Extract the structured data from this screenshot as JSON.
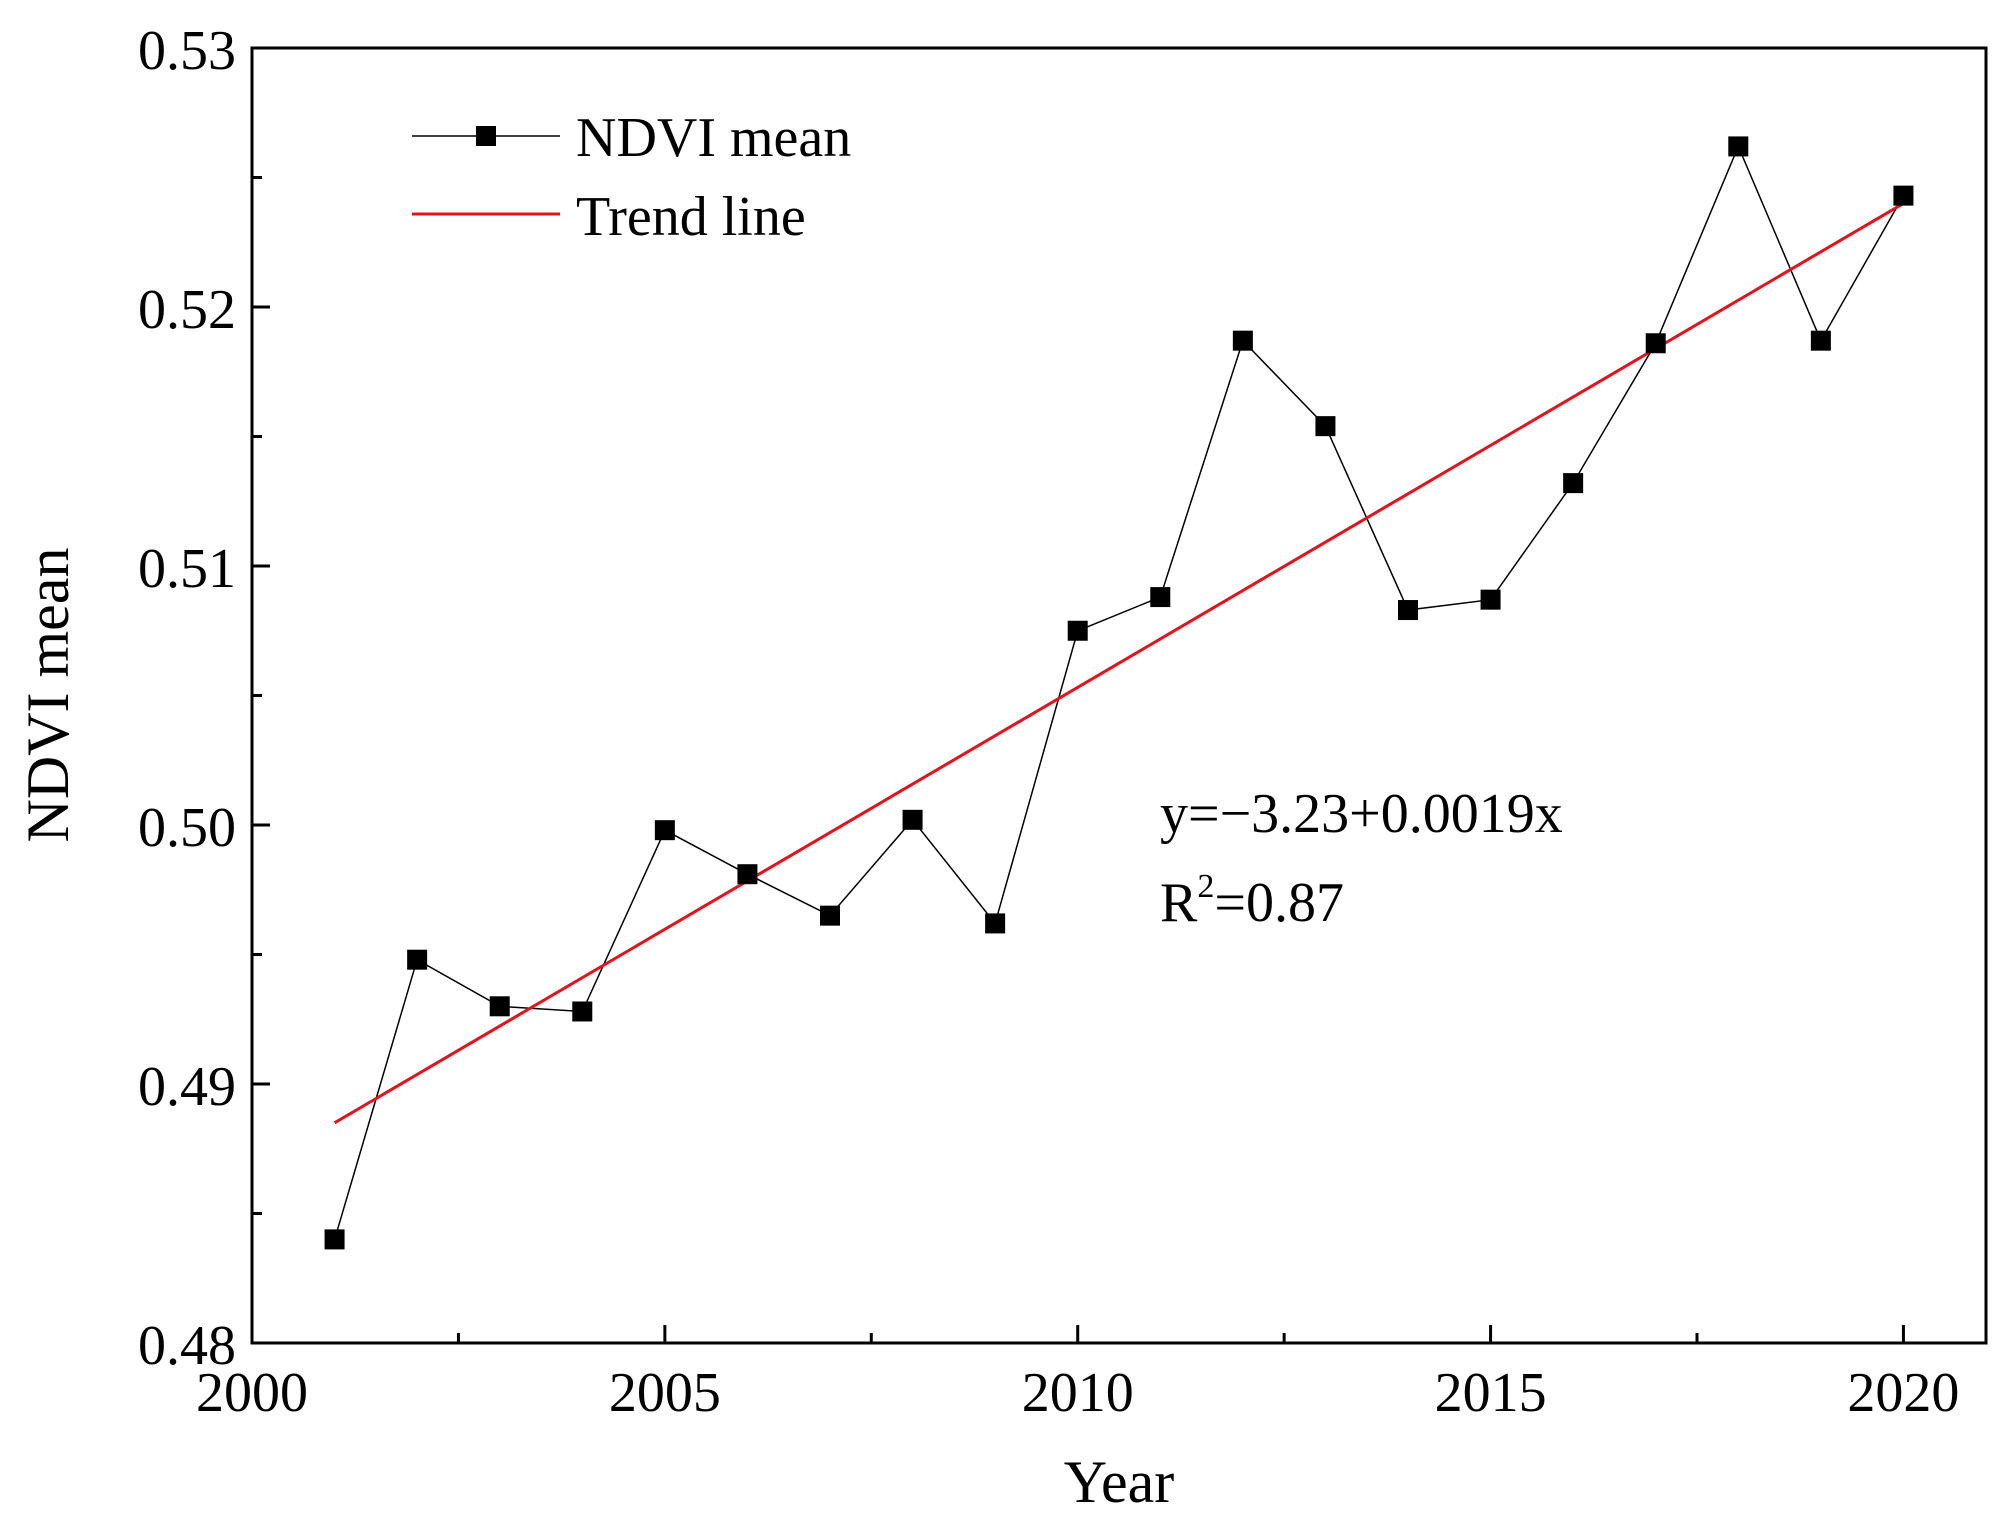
{
  "chart_data": {
    "type": "line",
    "title": "",
    "xlabel": "Year",
    "ylabel": "NDVI mean",
    "xlim": [
      2000,
      2021
    ],
    "ylim": [
      0.48,
      0.53
    ],
    "x_ticks": [
      2000,
      2005,
      2010,
      2015,
      2020
    ],
    "x_tick_labels": [
      "2000",
      "2005",
      "2010",
      "2015",
      "2020"
    ],
    "y_ticks": [
      0.48,
      0.49,
      0.5,
      0.51,
      0.52,
      0.53
    ],
    "y_tick_labels": [
      "0.48",
      "0.49",
      "0.50",
      "0.51",
      "0.52",
      "0.53"
    ],
    "grid": false,
    "legend_position": "top-left",
    "series": [
      {
        "name": "NDVI mean",
        "color": "#000000",
        "marker": "square",
        "x": [
          2001,
          2002,
          2003,
          2004,
          2005,
          2006,
          2007,
          2008,
          2009,
          2010,
          2011,
          2012,
          2013,
          2014,
          2015,
          2016,
          2017,
          2018,
          2019,
          2020
        ],
        "values": [
          0.484,
          0.4948,
          0.493,
          0.4928,
          0.4998,
          0.4981,
          0.4965,
          0.5002,
          0.4962,
          0.5075,
          0.5088,
          0.5187,
          0.5154,
          0.5083,
          0.5087,
          0.5132,
          0.5186,
          0.5262,
          0.5187,
          0.5243
        ]
      },
      {
        "name": "Trend line",
        "color": "#e8101a",
        "marker": "none",
        "x": [
          2001,
          2020
        ],
        "values": [
          0.4885,
          0.524
        ]
      }
    ],
    "annotations": {
      "equation": "y=−3.23+0.0019x",
      "r2_prefix": "R",
      "r2_sup": "2",
      "r2_value": "=0.87"
    }
  }
}
